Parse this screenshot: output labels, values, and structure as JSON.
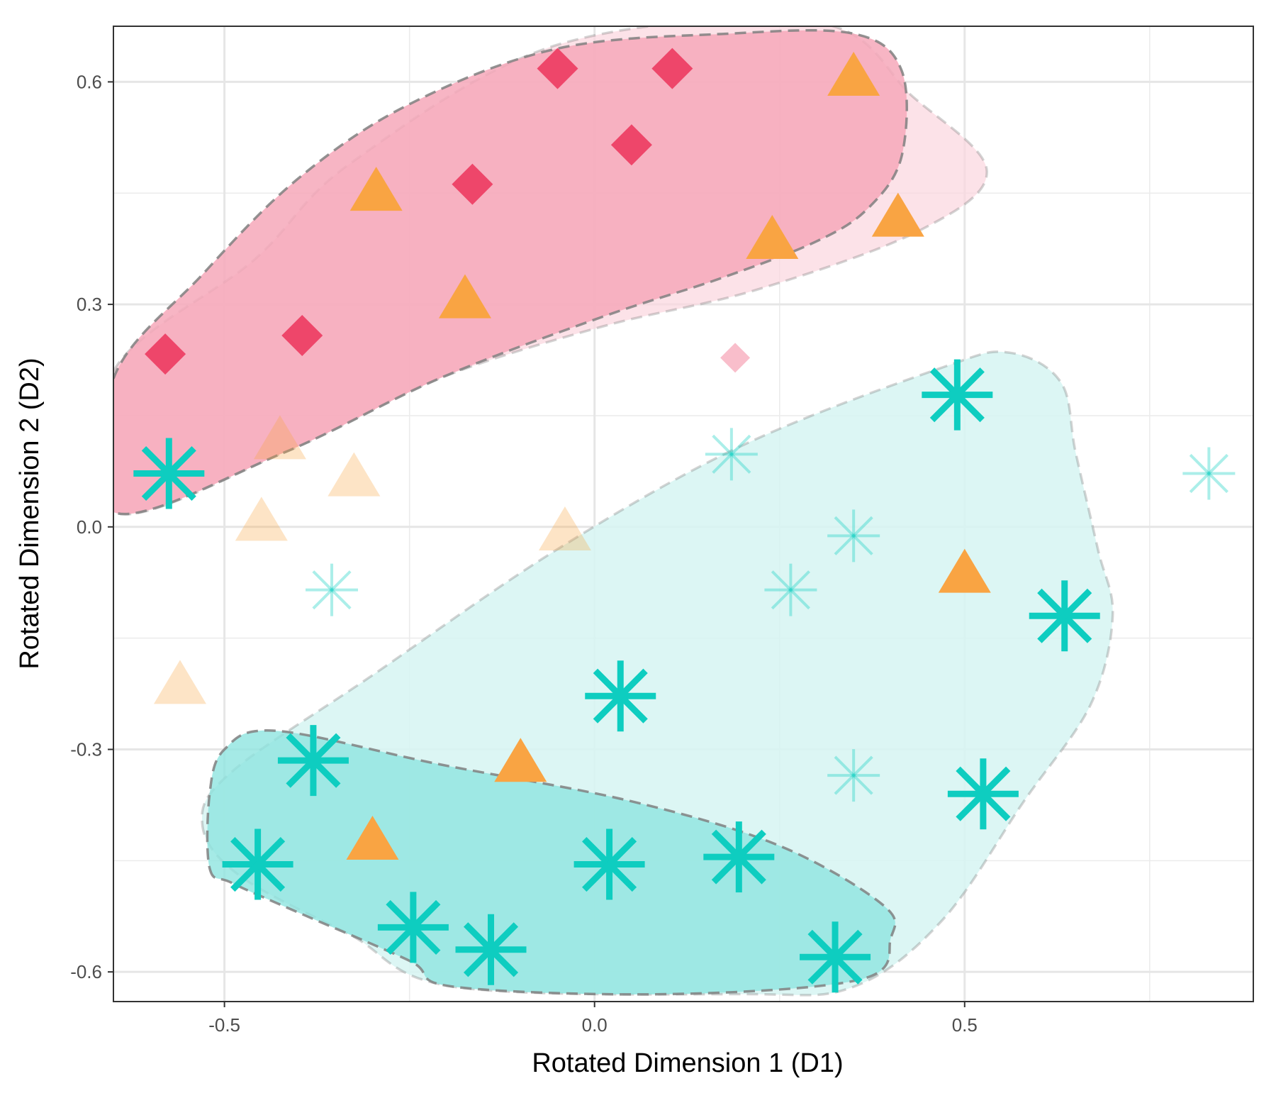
{
  "chart_data": {
    "type": "scatter",
    "xlabel": "Rotated Dimension 1 (D1)",
    "ylabel": "Rotated Dimension 2 (D2)",
    "xlim": [
      -0.65,
      0.89
    ],
    "ylim": [
      -0.64,
      0.675
    ],
    "x_ticks": [
      -0.5,
      0.0,
      0.5
    ],
    "x_tick_labels": [
      "-0.5",
      "0.0",
      "0.5"
    ],
    "y_ticks": [
      -0.6,
      -0.3,
      0.0,
      0.3,
      0.6
    ],
    "y_tick_labels": [
      "-0.6",
      "-0.3",
      "0.0",
      "0.3",
      "0.6"
    ],
    "grid": true,
    "legend": "none",
    "colors": {
      "diamond": "#ee466a",
      "triangle": "#f9a443",
      "asterisk": "#0ecdc0",
      "hull_pink_outer": "#fbd5de",
      "hull_pink_inner": "#f6a8ba",
      "hull_teal_outer": "#d6f5f2",
      "hull_teal_inner": "#8fe5e0",
      "hull_border": "#808080"
    },
    "hulls": [
      {
        "group": "pink-outer",
        "points": [
          [
            -0.65,
            0.21
          ],
          [
            -0.46,
            0.36
          ],
          [
            -0.33,
            0.49
          ],
          [
            -0.05,
            0.65
          ],
          [
            0.3,
            0.68
          ],
          [
            0.43,
            0.58
          ],
          [
            0.53,
            0.48
          ],
          [
            0.44,
            0.4
          ],
          [
            0.22,
            0.32
          ],
          [
            0.01,
            0.27
          ],
          [
            -0.21,
            0.2
          ],
          [
            -0.42,
            0.1
          ],
          [
            -0.65,
            0.02
          ]
        ]
      },
      {
        "group": "pink-inner",
        "points": [
          [
            -0.65,
            0.2
          ],
          [
            -0.53,
            0.34
          ],
          [
            -0.4,
            0.47
          ],
          [
            -0.25,
            0.57
          ],
          [
            -0.05,
            0.645
          ],
          [
            0.18,
            0.665
          ],
          [
            0.35,
            0.665
          ],
          [
            0.415,
            0.615
          ],
          [
            0.415,
            0.5
          ],
          [
            0.37,
            0.43
          ],
          [
            0.3,
            0.385
          ],
          [
            0.17,
            0.335
          ],
          [
            0.01,
            0.283
          ],
          [
            -0.21,
            0.2
          ],
          [
            -0.42,
            0.1
          ],
          [
            -0.65,
            0.02
          ]
        ]
      },
      {
        "group": "teal-outer",
        "points": [
          [
            -0.53,
            -0.4
          ],
          [
            -0.48,
            -0.47
          ],
          [
            -0.33,
            -0.55
          ],
          [
            -0.19,
            -0.62
          ],
          [
            0.2,
            -0.63
          ],
          [
            0.35,
            -0.62
          ],
          [
            0.47,
            -0.53
          ],
          [
            0.58,
            -0.37
          ],
          [
            0.67,
            -0.24
          ],
          [
            0.7,
            -0.12
          ],
          [
            0.68,
            -0.03
          ],
          [
            0.65,
            0.1
          ],
          [
            0.63,
            0.195
          ],
          [
            0.56,
            0.235
          ],
          [
            0.47,
            0.215
          ],
          [
            0.2,
            0.11
          ],
          [
            -0.05,
            -0.03
          ],
          [
            -0.3,
            -0.2
          ],
          [
            -0.49,
            -0.33
          ]
        ]
      },
      {
        "group": "teal-inner",
        "points": [
          [
            -0.52,
            -0.46
          ],
          [
            -0.49,
            -0.48
          ],
          [
            -0.4,
            -0.52
          ],
          [
            -0.25,
            -0.585
          ],
          [
            -0.19,
            -0.62
          ],
          [
            0.1,
            -0.63
          ],
          [
            0.36,
            -0.61
          ],
          [
            0.4,
            -0.555
          ],
          [
            0.39,
            -0.51
          ],
          [
            0.25,
            -0.43
          ],
          [
            0.05,
            -0.37
          ],
          [
            -0.21,
            -0.32
          ],
          [
            -0.43,
            -0.275
          ],
          [
            -0.5,
            -0.3
          ],
          [
            -0.52,
            -0.36
          ]
        ]
      }
    ],
    "series": [
      {
        "shape": "diamond",
        "points": [
          {
            "x": -0.58,
            "y": 0.233,
            "emphasis": "bold"
          },
          {
            "x": -0.395,
            "y": 0.258,
            "emphasis": "bold"
          },
          {
            "x": -0.165,
            "y": 0.462,
            "emphasis": "bold"
          },
          {
            "x": -0.05,
            "y": 0.618,
            "emphasis": "bold"
          },
          {
            "x": 0.05,
            "y": 0.515,
            "emphasis": "bold"
          },
          {
            "x": 0.105,
            "y": 0.618,
            "emphasis": "bold"
          },
          {
            "x": 0.19,
            "y": 0.228,
            "emphasis": "faded"
          }
        ]
      },
      {
        "shape": "triangle",
        "points": [
          {
            "x": -0.295,
            "y": 0.45,
            "emphasis": "bold"
          },
          {
            "x": -0.175,
            "y": 0.305,
            "emphasis": "bold"
          },
          {
            "x": 0.24,
            "y": 0.385,
            "emphasis": "bold"
          },
          {
            "x": 0.35,
            "y": 0.605,
            "emphasis": "bold"
          },
          {
            "x": 0.41,
            "y": 0.415,
            "emphasis": "bold"
          },
          {
            "x": 0.5,
            "y": -0.065,
            "emphasis": "bold"
          },
          {
            "x": -0.1,
            "y": -0.32,
            "emphasis": "bold"
          },
          {
            "x": -0.3,
            "y": -0.425,
            "emphasis": "bold"
          },
          {
            "x": -0.425,
            "y": 0.115,
            "emphasis": "faded"
          },
          {
            "x": -0.325,
            "y": 0.065,
            "emphasis": "faded"
          },
          {
            "x": -0.45,
            "y": 0.005,
            "emphasis": "faded"
          },
          {
            "x": -0.04,
            "y": -0.008,
            "emphasis": "faded"
          },
          {
            "x": -0.56,
            "y": -0.215,
            "emphasis": "faded"
          }
        ]
      },
      {
        "shape": "asterisk",
        "points": [
          {
            "x": -0.575,
            "y": 0.072,
            "emphasis": "bold"
          },
          {
            "x": 0.49,
            "y": 0.178,
            "emphasis": "bold"
          },
          {
            "x": 0.635,
            "y": -0.12,
            "emphasis": "bold"
          },
          {
            "x": 0.035,
            "y": -0.228,
            "emphasis": "bold"
          },
          {
            "x": -0.38,
            "y": -0.315,
            "emphasis": "bold"
          },
          {
            "x": 0.525,
            "y": -0.36,
            "emphasis": "bold"
          },
          {
            "x": -0.455,
            "y": -0.455,
            "emphasis": "bold"
          },
          {
            "x": 0.02,
            "y": -0.455,
            "emphasis": "bold"
          },
          {
            "x": 0.195,
            "y": -0.445,
            "emphasis": "bold"
          },
          {
            "x": -0.245,
            "y": -0.54,
            "emphasis": "bold"
          },
          {
            "x": -0.14,
            "y": -0.57,
            "emphasis": "bold"
          },
          {
            "x": 0.325,
            "y": -0.58,
            "emphasis": "bold"
          },
          {
            "x": 0.185,
            "y": 0.098,
            "emphasis": "faded"
          },
          {
            "x": 0.35,
            "y": -0.012,
            "emphasis": "faded"
          },
          {
            "x": -0.355,
            "y": -0.085,
            "emphasis": "faded"
          },
          {
            "x": 0.265,
            "y": -0.085,
            "emphasis": "faded"
          },
          {
            "x": 0.35,
            "y": -0.335,
            "emphasis": "faded"
          },
          {
            "x": 0.83,
            "y": 0.072,
            "emphasis": "faded"
          }
        ]
      }
    ]
  }
}
